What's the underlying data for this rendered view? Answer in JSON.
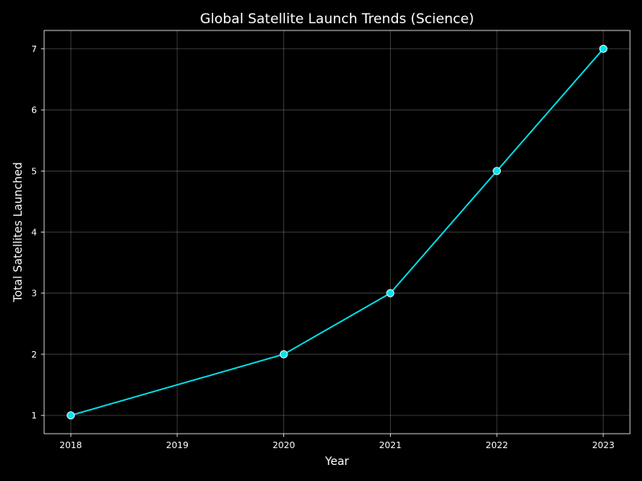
{
  "chart_data": {
    "type": "line",
    "title": "Global Satellite Launch Trends (Science)",
    "xlabel": "Year",
    "ylabel": "Total Satellites Launched",
    "x": [
      2018,
      2020,
      2021,
      2022,
      2023
    ],
    "series": [
      {
        "values": [
          1,
          2,
          3,
          5,
          7
        ],
        "color": "#00e5ee"
      }
    ],
    "xticks": [
      2018,
      2019,
      2020,
      2021,
      2022,
      2023
    ],
    "yticks": [
      1,
      2,
      3,
      4,
      5,
      6,
      7
    ],
    "xlim": [
      2017.75,
      2023.25
    ],
    "ylim": [
      0.7,
      7.3
    ],
    "grid": true,
    "background": "#000000",
    "marker_edge_color": "#ffffff"
  }
}
